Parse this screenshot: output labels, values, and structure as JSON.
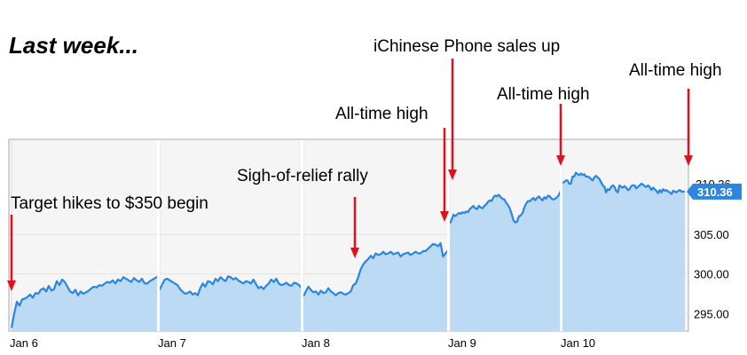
{
  "heading": "Last week...",
  "colors": {
    "line": "#2a86df",
    "area": "#bcdaf3",
    "plot_background": "#f5f5f5",
    "arrow": "#e0101c",
    "price_badge": "#2a86df"
  },
  "chart_data": {
    "type": "area",
    "x_tick_labels": [
      "Jan 6",
      "Jan 7",
      "Jan 8",
      "Jan 9",
      "Jan 10"
    ],
    "y_tick_labels": [
      "295.00",
      "300.00",
      "305.00"
    ],
    "y_ticks": [
      295,
      300,
      305
    ],
    "ylim": [
      292.8,
      317
    ],
    "grid": "horizontal and vertical",
    "last_price_label": "310.36",
    "series": [
      {
        "days": [
          {
            "label": "Jan 6",
            "values": [
              293.2,
              295.0,
              296.5,
              296.0,
              296.8,
              296.9,
              297.1,
              297.4,
              297.0,
              297.6,
              297.5,
              298.0,
              298.2,
              297.8,
              298.5,
              297.9,
              298.1,
              299.1,
              298.6,
              299.3,
              299.0,
              298.4,
              297.8,
              297.6,
              298.0,
              297.3,
              297.8,
              297.5,
              297.7,
              297.9,
              298.2,
              298.4,
              298.3,
              298.6,
              298.5,
              298.8,
              299.0,
              298.9,
              299.2,
              298.8,
              299.3,
              299.1,
              299.6,
              299.4,
              299.2,
              299.0,
              299.5,
              299.2,
              299.0,
              299.4,
              298.8,
              298.8,
              299.1,
              299.3,
              299.5,
              299.7
            ]
          },
          {
            "label": "Jan 7",
            "values": [
              298.0,
              298.7,
              299.3,
              299.4,
              299.2,
              299.0,
              298.8,
              298.6,
              298.1,
              297.8,
              297.5,
              297.6,
              297.8,
              297.4,
              297.6,
              297.3,
              298.2,
              298.8,
              298.4,
              299.1,
              299.0,
              298.7,
              299.4,
              299.1,
              299.6,
              299.3,
              299.1,
              299.7,
              299.6,
              299.3,
              299.5,
              299.2,
              299.0,
              298.8,
              299.1,
              299.0,
              298.8,
              299.3,
              298.7,
              298.2,
              298.4,
              298.1,
              298.5,
              298.8,
              299.3,
              299.0,
              299.4,
              298.8,
              298.6,
              298.7,
              298.9,
              298.6,
              298.5,
              298.9,
              298.8,
              298.6,
              298.2
            ]
          },
          {
            "label": "Jan 8",
            "values": [
              297.2,
              297.8,
              298.4,
              298.0,
              297.7,
              297.8,
              297.4,
              297.9,
              297.6,
              297.7,
              298.2,
              297.8,
              297.6,
              297.3,
              297.6,
              297.7,
              297.5,
              297.4,
              297.6,
              297.8,
              298.6,
              298.8,
              299.6,
              300.6,
              301.2,
              301.6,
              301.9,
              302.3,
              302.0,
              302.6,
              302.4,
              302.5,
              302.8,
              302.5,
              302.6,
              302.8,
              302.5,
              302.6,
              302.7,
              302.2,
              302.5,
              302.6,
              302.7,
              302.4,
              302.6,
              302.8,
              302.6,
              302.6,
              302.9,
              302.9,
              303.2,
              303.5,
              303.8,
              303.7,
              303.5,
              303.9,
              302.2,
              302.6,
              303.0
            ]
          },
          {
            "label": "Jan 9",
            "values": [
              306.4,
              306.8,
              307.5,
              307.3,
              307.5,
              307.7,
              307.6,
              307.8,
              307.7,
              307.9,
              307.8,
              308.2,
              308.4,
              308.6,
              308.3,
              308.2,
              308.6,
              308.4,
              308.3,
              308.6,
              308.8,
              309.1,
              309.3,
              309.2,
              309.7,
              309.9,
              309.8,
              310.0,
              309.7,
              309.5,
              309.4,
              309.0,
              308.7,
              308.3,
              307.6,
              306.8,
              306.5,
              306.6,
              307.3,
              307.4,
              307.7,
              308.4,
              308.9,
              309.2,
              309.2,
              309.4,
              309.6,
              309.3,
              309.6,
              309.8,
              309.5,
              309.3,
              309.7,
              309.5,
              309.9,
              309.8,
              309.5,
              309.4,
              309.5,
              309.7,
              310.0,
              310.5
            ]
          },
          {
            "label": "Jan 10",
            "values": [
              311.5,
              311.6,
              311.8,
              311.8,
              311.4,
              311.4,
              312.3,
              312.3,
              312.8,
              312.6,
              312.5,
              312.7,
              312.5,
              312.6,
              312.3,
              312.3,
              312.2,
              312.0,
              311.8,
              312.2,
              312.4,
              312.2,
              312.0,
              311.6,
              311.2,
              311.0,
              310.3,
              310.7,
              310.6,
              311.0,
              311.2,
              311.0,
              310.5,
              310.3,
              311.2,
              311.0,
              310.9,
              311.1,
              310.9,
              310.6,
              310.7,
              311.1,
              311.2,
              311.2,
              310.8,
              311.0,
              311.2,
              311.4,
              311.3,
              311.1,
              311.0,
              311.2,
              311.0,
              310.6,
              310.9,
              310.7,
              310.5,
              310.2,
              310.6,
              310.3,
              310.7,
              310.5,
              310.6,
              310.4,
              310.3,
              310.1,
              310.5,
              310.4,
              310.3,
              310.5,
              310.6,
              310.4,
              310.4,
              310.4
            ]
          }
        ]
      }
    ],
    "annotations": [
      {
        "text": "Target hikes to $350 begin",
        "day": "Jan 6",
        "at": "open"
      },
      {
        "text": "Sigh-of-relief rally",
        "day": "Jan 8",
        "at": "midday"
      },
      {
        "text": "All-time high",
        "day": "Jan 8",
        "at": "close"
      },
      {
        "text": "iChinese Phone sales up",
        "day": "Jan 9",
        "at": "open"
      },
      {
        "text": "All-time high",
        "day": "Jan 10",
        "at": "open"
      },
      {
        "text": "All-time high",
        "day": "Jan 10",
        "at": "close"
      }
    ]
  }
}
